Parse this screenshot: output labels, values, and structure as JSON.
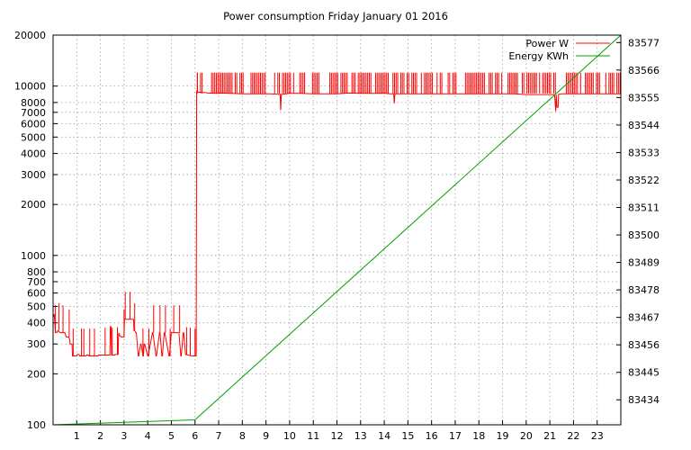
{
  "chart_data": {
    "type": "line",
    "title": "Power consumption Friday January 01 2016",
    "xlabel": "",
    "ylabel": "",
    "y2label": "",
    "grid": true,
    "legend_position": "top-right",
    "xlim": [
      0,
      24
    ],
    "x_ticks": [
      1,
      2,
      3,
      4,
      5,
      6,
      7,
      8,
      9,
      10,
      11,
      12,
      13,
      14,
      15,
      16,
      17,
      18,
      19,
      20,
      21,
      22,
      23
    ],
    "y_scale": "log",
    "ylim": [
      100,
      20000
    ],
    "y_ticks": [
      100,
      200,
      300,
      400,
      500,
      600,
      700,
      800,
      1000,
      2000,
      3000,
      4000,
      5000,
      6000,
      7000,
      8000,
      10000,
      20000
    ],
    "y2_scale": "linear",
    "y2lim": [
      83424,
      83580
    ],
    "y2_ticks": [
      83434,
      83445,
      83456,
      83467,
      83478,
      83489,
      83500,
      83511,
      83522,
      83533,
      83544,
      83555,
      83566,
      83577
    ],
    "series": [
      {
        "name": "Power W",
        "axis": "y",
        "color": "#ff0000",
        "x": [
          0.0,
          0.05,
          0.1,
          0.15,
          0.2,
          0.3,
          0.5,
          0.55,
          0.65,
          0.7,
          0.72,
          0.8,
          0.82,
          1.0,
          1.02,
          1.1,
          1.12,
          1.4,
          1.42,
          1.5,
          1.52,
          1.9,
          1.92,
          2.0,
          2.02,
          2.4,
          2.42,
          2.45,
          2.47,
          2.6,
          2.62,
          2.75,
          2.77,
          2.8,
          2.82,
          2.85,
          2.87,
          2.9,
          3.0,
          3.02,
          3.05,
          3.1,
          3.12,
          3.4,
          3.42,
          3.45,
          3.5,
          3.52,
          3.6,
          3.62,
          3.7,
          3.72,
          3.8,
          3.82,
          3.85,
          3.87,
          4.0,
          4.02,
          4.2,
          4.22,
          4.35,
          4.37,
          4.5,
          4.52,
          4.6,
          4.62,
          4.7,
          4.72,
          4.9,
          4.92,
          5.0,
          5.02,
          5.3,
          5.32,
          5.4,
          5.42,
          5.5,
          5.52,
          5.6,
          5.62,
          5.7,
          5.72,
          5.85,
          5.87,
          6.05,
          6.07,
          6.1,
          6.3,
          6.35,
          6.5,
          6.52,
          7.0,
          7.05,
          7.5,
          7.6,
          8.0,
          8.1,
          8.5,
          8.6,
          9.0,
          9.2,
          9.5,
          9.6,
          9.62,
          9.65,
          9.7,
          10.0,
          10.5,
          11.0,
          11.5,
          12.0,
          12.5,
          13.0,
          13.5,
          14.0,
          14.3,
          14.4,
          14.42,
          14.45,
          14.5,
          15.0,
          15.5,
          16.0,
          16.5,
          17.0,
          17.5,
          18.0,
          18.5,
          19.0,
          19.5,
          20.0,
          20.5,
          21.0,
          21.2,
          21.25,
          21.27,
          21.3,
          21.35,
          21.37,
          21.4,
          21.5,
          22.0,
          22.5,
          23.0,
          23.5,
          24.0
        ],
        "values": [
          430,
          450,
          350,
          350,
          360,
          350,
          350,
          330,
          330,
          320,
          300,
          300,
          255,
          255,
          260,
          260,
          255,
          255,
          258,
          258,
          255,
          255,
          258,
          258,
          258,
          258,
          380,
          380,
          258,
          258,
          260,
          260,
          345,
          345,
          335,
          335,
          330,
          330,
          330,
          420,
          420,
          420,
          420,
          420,
          360,
          360,
          350,
          350,
          255,
          255,
          300,
          300,
          255,
          255,
          300,
          300,
          255,
          255,
          350,
          350,
          255,
          255,
          350,
          350,
          255,
          255,
          350,
          350,
          255,
          255,
          350,
          350,
          350,
          350,
          255,
          255,
          350,
          350,
          260,
          260,
          258,
          258,
          255,
          255,
          255,
          9400,
          9200,
          9200,
          9150,
          9150,
          9100,
          9050,
          9100,
          9050,
          9050,
          9000,
          9000,
          9000,
          9000,
          9000,
          9000,
          8950,
          8950,
          7200,
          8950,
          8950,
          9050,
          9050,
          9000,
          9000,
          9000,
          9100,
          9050,
          9050,
          9050,
          9000,
          9000,
          7900,
          9000,
          9000,
          9000,
          9000,
          9000,
          9000,
          9000,
          9000,
          9000,
          9000,
          9000,
          9000,
          8900,
          8900,
          8900,
          8900,
          7100,
          8900,
          7500,
          7500,
          8950,
          8950,
          9000,
          9000,
          9000,
          9000,
          9000,
          9000
        ]
      },
      {
        "name": "Energy KWh",
        "axis": "y2",
        "color": "#00a000",
        "x": [
          0,
          6,
          24
        ],
        "values": [
          83424,
          83426,
          83580
        ]
      }
    ],
    "power_spike_hours": [
      0.1,
      0.25,
      0.42,
      0.68,
      0.85,
      1.2,
      1.3,
      1.55,
      1.75,
      2.2,
      2.5,
      2.72,
      3.0,
      3.05,
      3.25,
      3.45,
      3.8,
      4.05,
      4.25,
      4.52,
      4.75,
      4.95,
      5.1,
      5.35,
      5.65,
      5.8,
      6.0,
      6.05,
      6.1
    ]
  }
}
